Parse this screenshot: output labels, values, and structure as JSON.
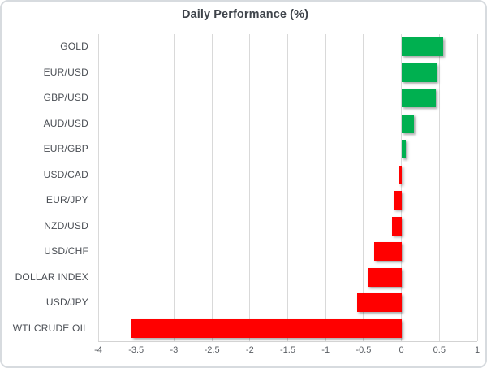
{
  "chart_data": {
    "type": "bar",
    "orientation": "horizontal",
    "title": "Daily Performance (%)",
    "categories": [
      "GOLD",
      "EUR/USD",
      "GBP/USD",
      "AUD/USD",
      "EUR/GBP",
      "USD/CAD",
      "EUR/JPY",
      "NZD/USD",
      "USD/CHF",
      "DOLLAR INDEX",
      "USD/JPY",
      "WTI CRUDE OIL"
    ],
    "values": [
      0.55,
      0.47,
      0.45,
      0.17,
      0.06,
      -0.03,
      -0.1,
      -0.12,
      -0.36,
      -0.45,
      -0.59,
      -3.56
    ],
    "xlim": [
      -4,
      1
    ],
    "xticks": [
      -4,
      -3.5,
      -3,
      -2.5,
      -2,
      -1.5,
      -1,
      -0.5,
      0,
      0.5,
      1
    ],
    "xtick_labels": [
      "-4",
      "-3.5",
      "-3",
      "-2.5",
      "-2",
      "-1.5",
      "-1",
      "-0.5",
      "0",
      "0.5",
      "1"
    ],
    "grid": true,
    "legend": "none",
    "positive_color": "#00B050",
    "negative_color": "#FF0000",
    "gridline_color": "#D9D9D9"
  }
}
